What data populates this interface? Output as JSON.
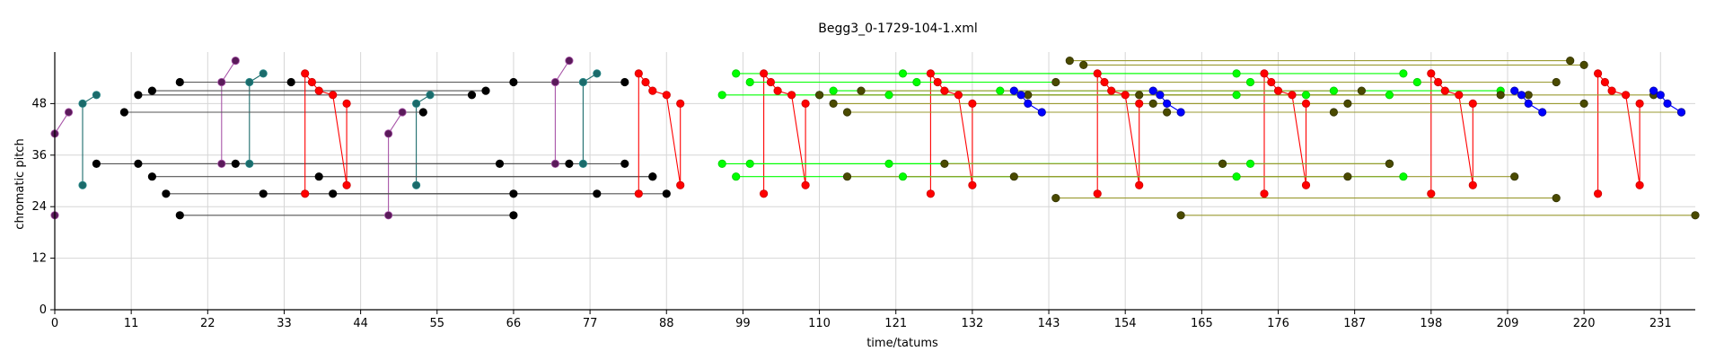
{
  "chart_data": {
    "type": "scatter",
    "title": "Begg3_0-1729-104-1.xml",
    "xlabel": "time/tatums",
    "ylabel": "chromatic pitch",
    "xlim": [
      0,
      236
    ],
    "ylim": [
      0,
      60
    ],
    "x_ticks": [
      0,
      11,
      22,
      33,
      44,
      55,
      66,
      77,
      88,
      99,
      110,
      121,
      132,
      143,
      154,
      165,
      176,
      187,
      198,
      209,
      220,
      231
    ],
    "y_ticks": [
      0,
      12,
      24,
      36,
      48
    ],
    "grid": true,
    "colors": {
      "purple": "#5a1a5a",
      "purple_edge": "#a855a8",
      "teal": "#1b6b6b",
      "black": "#000000",
      "red": "#ff0000",
      "green": "#00ff00",
      "olive": "#4a4a00",
      "olive_line": "#9a9a30",
      "blue": "#0000ff"
    },
    "series": [
      {
        "color": "purple",
        "segments": [
          [
            [
              0,
              22
            ],
            [
              0,
              41
            ],
            [
              2,
              46
            ]
          ],
          [
            [
              24,
              34
            ],
            [
              24,
              53
            ],
            [
              26,
              58
            ]
          ],
          [
            [
              48,
              22
            ],
            [
              48,
              41
            ],
            [
              50,
              46
            ]
          ],
          [
            [
              72,
              34
            ],
            [
              72,
              53
            ],
            [
              74,
              58
            ]
          ]
        ]
      },
      {
        "color": "teal",
        "segments": [
          [
            [
              4,
              29
            ],
            [
              4,
              48
            ],
            [
              6,
              50
            ]
          ],
          [
            [
              28,
              34
            ],
            [
              28,
              53
            ],
            [
              30,
              55
            ]
          ],
          [
            [
              52,
              29
            ],
            [
              52,
              48
            ],
            [
              54,
              50
            ]
          ],
          [
            [
              76,
              34
            ],
            [
              76,
              53
            ],
            [
              78,
              55
            ]
          ]
        ]
      },
      {
        "color": "black",
        "segments": [
          [
            [
              10,
              46
            ],
            [
              53,
              46
            ]
          ],
          [
            [
              12,
              50
            ],
            [
              60,
              50
            ]
          ],
          [
            [
              14,
              51
            ],
            [
              62,
              51
            ]
          ],
          [
            [
              18,
              53
            ],
            [
              66,
              53
            ]
          ],
          [
            [
              6,
              34
            ],
            [
              82,
              34
            ]
          ],
          [
            [
              12,
              34
            ],
            [
              74,
              34
            ]
          ],
          [
            [
              14,
              31
            ],
            [
              86,
              31
            ]
          ],
          [
            [
              16,
              27
            ],
            [
              88,
              27
            ]
          ],
          [
            [
              18,
              22
            ],
            [
              66,
              22
            ]
          ],
          [
            [
              30,
              27
            ],
            [
              78,
              27
            ]
          ],
          [
            [
              34,
              53
            ],
            [
              82,
              53
            ]
          ],
          [
            [
              38,
              31
            ],
            [
              86,
              31
            ]
          ],
          [
            [
              40,
              27
            ],
            [
              66,
              27
            ]
          ],
          [
            [
              26,
              34
            ],
            [
              64,
              34
            ]
          ]
        ]
      },
      {
        "color": "red",
        "segments": [
          [
            [
              36,
              27
            ],
            [
              36,
              55
            ],
            [
              37,
              53
            ],
            [
              38,
              51
            ],
            [
              40,
              50
            ],
            [
              42,
              29
            ],
            [
              42,
              48
            ]
          ],
          [
            [
              84,
              27
            ],
            [
              84,
              55
            ],
            [
              85,
              53
            ],
            [
              86,
              51
            ],
            [
              88,
              50
            ],
            [
              90,
              29
            ],
            [
              90,
              48
            ]
          ],
          [
            [
              102,
              27
            ],
            [
              102,
              55
            ],
            [
              103,
              53
            ],
            [
              104,
              51
            ],
            [
              106,
              50
            ],
            [
              108,
              29
            ],
            [
              108,
              48
            ]
          ],
          [
            [
              126,
              27
            ],
            [
              126,
              55
            ],
            [
              127,
              53
            ],
            [
              128,
              51
            ],
            [
              130,
              50
            ],
            [
              132,
              29
            ],
            [
              132,
              48
            ]
          ],
          [
            [
              150,
              27
            ],
            [
              150,
              55
            ],
            [
              151,
              53
            ],
            [
              152,
              51
            ],
            [
              154,
              50
            ],
            [
              156,
              29
            ],
            [
              156,
              48
            ]
          ],
          [
            [
              174,
              27
            ],
            [
              174,
              55
            ],
            [
              175,
              53
            ],
            [
              176,
              51
            ],
            [
              178,
              50
            ],
            [
              180,
              29
            ],
            [
              180,
              48
            ]
          ],
          [
            [
              198,
              27
            ],
            [
              198,
              55
            ],
            [
              199,
              53
            ],
            [
              200,
              51
            ],
            [
              202,
              50
            ],
            [
              204,
              29
            ],
            [
              204,
              48
            ]
          ],
          [
            [
              222,
              27
            ],
            [
              222,
              55
            ],
            [
              223,
              53
            ],
            [
              224,
              51
            ],
            [
              226,
              50
            ],
            [
              228,
              29
            ],
            [
              228,
              48
            ]
          ]
        ]
      },
      {
        "color": "green",
        "segments": [
          [
            [
              96,
              50
            ],
            [
              180,
              50
            ]
          ],
          [
            [
              98,
              55
            ],
            [
              194,
              55
            ]
          ],
          [
            [
              100,
              53
            ],
            [
              196,
              53
            ]
          ],
          [
            [
              96,
              34
            ],
            [
              168,
              34
            ]
          ],
          [
            [
              98,
              31
            ],
            [
              194,
              31
            ]
          ],
          [
            [
              100,
              34
            ],
            [
              192,
              34
            ]
          ],
          [
            [
              112,
              51
            ],
            [
              208,
              51
            ]
          ],
          [
            [
              120,
              50
            ],
            [
              192,
              50
            ]
          ],
          [
            [
              122,
              55
            ],
            [
              170,
              55
            ]
          ],
          [
            [
              124,
              53
            ],
            [
              172,
              53
            ]
          ],
          [
            [
              120,
              34
            ],
            [
              172,
              34
            ]
          ],
          [
            [
              122,
              31
            ],
            [
              170,
              31
            ]
          ],
          [
            [
              136,
              51
            ],
            [
              184,
              51
            ]
          ],
          [
            [
              110,
              50
            ],
            [
              170,
              50
            ]
          ]
        ]
      },
      {
        "color": "olive",
        "segments": [
          [
            [
              110,
              50
            ],
            [
              208,
              50
            ]
          ],
          [
            [
              112,
              48
            ],
            [
              186,
              48
            ]
          ],
          [
            [
              114,
              46
            ],
            [
              184,
              46
            ]
          ],
          [
            [
              116,
              51
            ],
            [
              188,
              51
            ]
          ],
          [
            [
              140,
              50
            ],
            [
              212,
              50
            ]
          ],
          [
            [
              144,
              53
            ],
            [
              216,
              53
            ]
          ],
          [
            [
              146,
              58
            ],
            [
              218,
              58
            ]
          ],
          [
            [
              148,
              57
            ],
            [
              220,
              57
            ]
          ],
          [
            [
              144,
              26
            ],
            [
              216,
              26
            ]
          ],
          [
            [
              162,
              22
            ],
            [
              236,
              22
            ]
          ],
          [
            [
              114,
              31
            ],
            [
              210,
              31
            ]
          ],
          [
            [
              128,
              34
            ],
            [
              192,
              34
            ]
          ],
          [
            [
              138,
              31
            ],
            [
              186,
              31
            ]
          ],
          [
            [
              158,
              48
            ],
            [
              220,
              48
            ]
          ],
          [
            [
              160,
              46
            ],
            [
              234,
              46
            ]
          ],
          [
            [
              168,
              34
            ],
            [
              192,
              34
            ]
          ],
          [
            [
              156,
              50
            ],
            [
              230,
              50
            ]
          ]
        ]
      },
      {
        "color": "blue",
        "segments": [
          [
            [
              138,
              51
            ],
            [
              139,
              50
            ],
            [
              140,
              48
            ],
            [
              142,
              46
            ]
          ],
          [
            [
              158,
              51
            ],
            [
              159,
              50
            ],
            [
              160,
              48
            ],
            [
              162,
              46
            ]
          ],
          [
            [
              210,
              51
            ],
            [
              211,
              50
            ],
            [
              212,
              48
            ],
            [
              214,
              46
            ]
          ],
          [
            [
              230,
              51
            ],
            [
              231,
              50
            ],
            [
              232,
              48
            ],
            [
              234,
              46
            ]
          ]
        ]
      }
    ]
  }
}
